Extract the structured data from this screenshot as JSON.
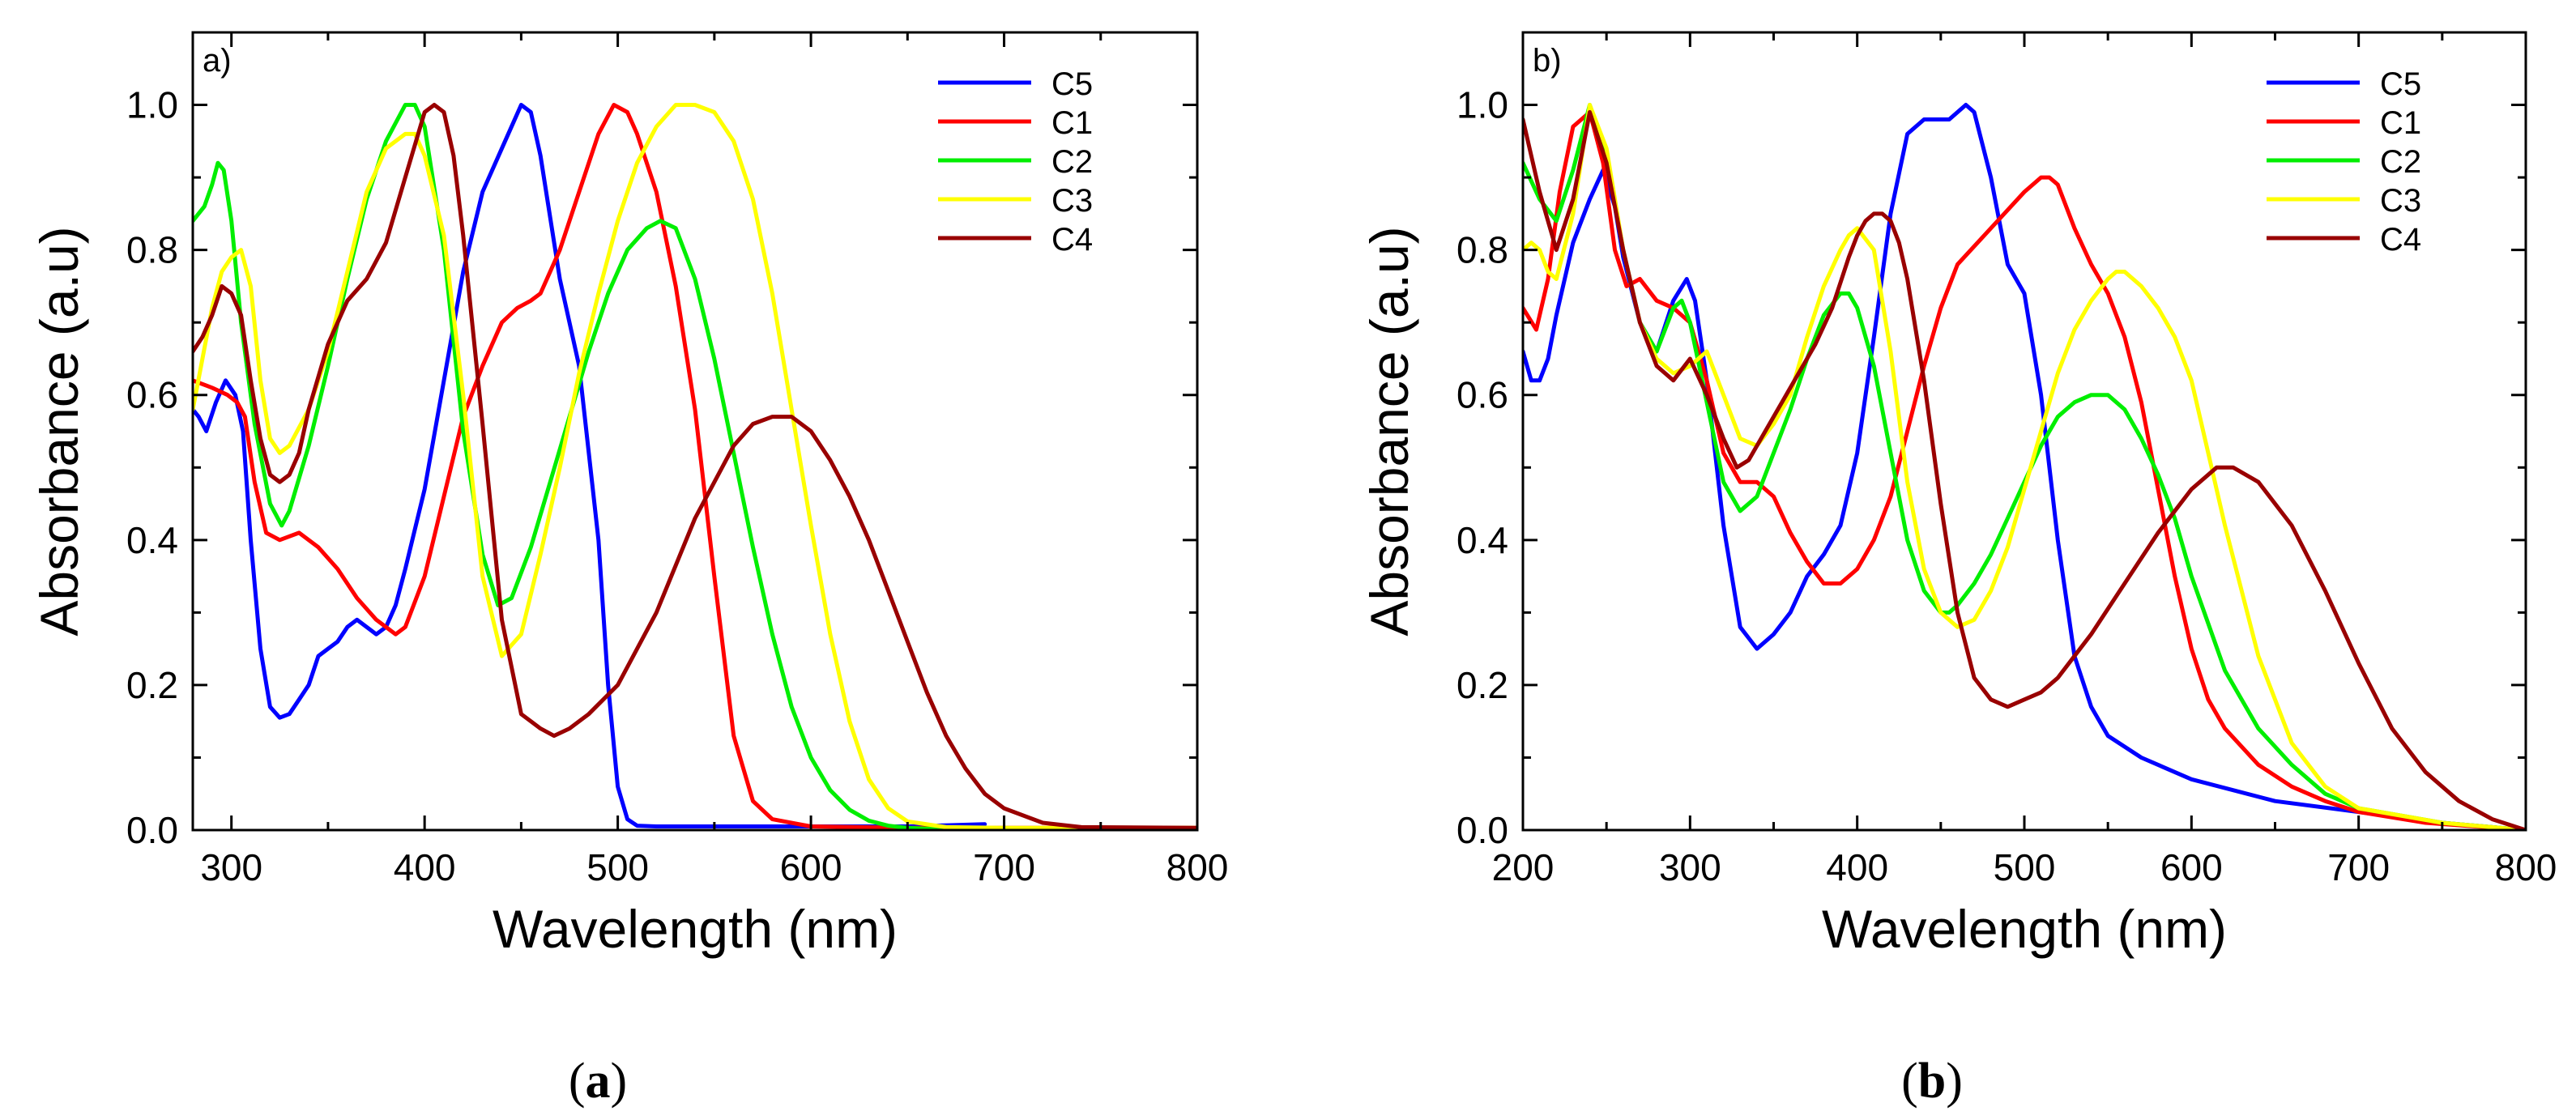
{
  "chart_data": [
    {
      "type": "line",
      "panel_label": "a)",
      "caption": {
        "open": "(",
        "letter": "a",
        "close": ")"
      },
      "xlabel": "Wavelength (nm)",
      "ylabel": "Absorbance (a.u)",
      "xlim": [
        280,
        800
      ],
      "ylim": [
        0,
        1.1
      ],
      "xticks": [
        300,
        400,
        500,
        600,
        700,
        800
      ],
      "yticks": [
        0.0,
        0.2,
        0.4,
        0.6,
        0.8,
        1.0
      ],
      "xtick_labels": [
        "300",
        "400",
        "500",
        "600",
        "700",
        "800"
      ],
      "ytick_labels": [
        "0.0",
        "0.2",
        "0.4",
        "0.6",
        "0.8",
        "1.0"
      ],
      "legend_position": "top-right",
      "series": [
        {
          "name": "C5",
          "color": "#0000ff",
          "x": [
            280,
            283,
            287,
            292,
            297,
            302,
            306,
            310,
            315,
            320,
            325,
            330,
            335,
            340,
            345,
            350,
            355,
            360,
            365,
            370,
            375,
            380,
            385,
            390,
            400,
            410,
            420,
            430,
            440,
            450,
            455,
            460,
            470,
            480,
            490,
            495,
            500,
            505,
            510,
            520,
            550,
            600,
            650,
            690
          ],
          "y": [
            0.58,
            0.57,
            0.55,
            0.59,
            0.62,
            0.6,
            0.55,
            0.4,
            0.25,
            0.17,
            0.155,
            0.16,
            0.18,
            0.2,
            0.24,
            0.25,
            0.26,
            0.28,
            0.29,
            0.28,
            0.27,
            0.28,
            0.31,
            0.36,
            0.47,
            0.62,
            0.77,
            0.88,
            0.94,
            1.0,
            0.99,
            0.93,
            0.76,
            0.64,
            0.4,
            0.2,
            0.06,
            0.015,
            0.006,
            0.005,
            0.005,
            0.005,
            0.005,
            0.008
          ]
        },
        {
          "name": "C1",
          "color": "#ff0000",
          "x": [
            280,
            290,
            298,
            303,
            307,
            312,
            318,
            325,
            335,
            345,
            355,
            365,
            375,
            385,
            390,
            400,
            410,
            420,
            430,
            440,
            448,
            455,
            460,
            470,
            480,
            490,
            498,
            505,
            510,
            520,
            530,
            540,
            550,
            560,
            570,
            580,
            600,
            650,
            700,
            800
          ],
          "y": [
            0.62,
            0.61,
            0.6,
            0.59,
            0.57,
            0.48,
            0.41,
            0.4,
            0.41,
            0.39,
            0.36,
            0.32,
            0.29,
            0.27,
            0.28,
            0.35,
            0.46,
            0.57,
            0.64,
            0.7,
            0.72,
            0.73,
            0.74,
            0.8,
            0.88,
            0.96,
            1.0,
            0.99,
            0.96,
            0.88,
            0.75,
            0.58,
            0.35,
            0.13,
            0.04,
            0.015,
            0.005,
            0.003,
            0.003,
            0.003
          ]
        },
        {
          "name": "C2",
          "color": "#00ee00",
          "x": [
            280,
            286,
            290,
            293,
            296,
            300,
            305,
            312,
            320,
            326,
            330,
            340,
            350,
            360,
            370,
            380,
            390,
            395,
            400,
            410,
            420,
            430,
            438,
            445,
            455,
            465,
            475,
            485,
            495,
            505,
            515,
            522,
            530,
            540,
            550,
            560,
            570,
            580,
            590,
            600,
            610,
            620,
            630,
            640,
            650,
            660,
            680,
            700,
            800
          ],
          "y": [
            0.84,
            0.86,
            0.89,
            0.92,
            0.91,
            0.84,
            0.7,
            0.56,
            0.45,
            0.42,
            0.44,
            0.53,
            0.64,
            0.76,
            0.87,
            0.95,
            1.0,
            1.0,
            0.97,
            0.8,
            0.55,
            0.38,
            0.31,
            0.32,
            0.39,
            0.48,
            0.57,
            0.66,
            0.74,
            0.8,
            0.83,
            0.84,
            0.83,
            0.76,
            0.65,
            0.52,
            0.39,
            0.27,
            0.17,
            0.1,
            0.055,
            0.028,
            0.013,
            0.006,
            0.003,
            0.002,
            0.002,
            0.002,
            0.002
          ]
        },
        {
          "name": "C3",
          "color": "#ffff00",
          "x": [
            280,
            285,
            290,
            295,
            300,
            305,
            310,
            315,
            320,
            325,
            330,
            340,
            350,
            360,
            370,
            380,
            390,
            395,
            400,
            410,
            420,
            430,
            440,
            450,
            460,
            470,
            480,
            490,
            500,
            510,
            520,
            530,
            540,
            550,
            560,
            570,
            580,
            590,
            600,
            610,
            620,
            630,
            640,
            650,
            670,
            700,
            800
          ],
          "y": [
            0.58,
            0.65,
            0.72,
            0.77,
            0.79,
            0.8,
            0.75,
            0.62,
            0.54,
            0.52,
            0.53,
            0.58,
            0.66,
            0.77,
            0.88,
            0.94,
            0.96,
            0.96,
            0.93,
            0.82,
            0.6,
            0.35,
            0.24,
            0.27,
            0.38,
            0.5,
            0.63,
            0.74,
            0.84,
            0.92,
            0.97,
            1.0,
            1.0,
            0.99,
            0.95,
            0.87,
            0.74,
            0.58,
            0.42,
            0.27,
            0.15,
            0.07,
            0.03,
            0.012,
            0.004,
            0.003,
            0.003
          ]
        },
        {
          "name": "C4",
          "color": "#990000",
          "x": [
            280,
            285,
            290,
            295,
            300,
            305,
            310,
            315,
            320,
            325,
            330,
            335,
            340,
            350,
            360,
            370,
            380,
            390,
            400,
            405,
            410,
            415,
            420,
            430,
            440,
            450,
            460,
            467,
            475,
            485,
            500,
            520,
            540,
            560,
            570,
            580,
            590,
            600,
            610,
            620,
            630,
            640,
            650,
            660,
            670,
            680,
            690,
            700,
            720,
            740,
            800
          ],
          "y": [
            0.66,
            0.68,
            0.71,
            0.75,
            0.74,
            0.71,
            0.62,
            0.54,
            0.49,
            0.48,
            0.49,
            0.52,
            0.58,
            0.67,
            0.73,
            0.76,
            0.81,
            0.9,
            0.99,
            1.0,
            0.99,
            0.93,
            0.82,
            0.56,
            0.29,
            0.16,
            0.14,
            0.13,
            0.14,
            0.16,
            0.2,
            0.3,
            0.43,
            0.53,
            0.56,
            0.57,
            0.57,
            0.55,
            0.51,
            0.46,
            0.4,
            0.33,
            0.26,
            0.19,
            0.13,
            0.085,
            0.05,
            0.03,
            0.01,
            0.004,
            0.003
          ]
        }
      ]
    },
    {
      "type": "line",
      "panel_label": "b)",
      "caption": {
        "open": "(",
        "letter": "b",
        "close": ")"
      },
      "xlabel": "Wavelength (nm)",
      "ylabel": "Absorbance (a.u)",
      "xlim": [
        200,
        800
      ],
      "ylim": [
        0,
        1.1
      ],
      "xticks": [
        200,
        300,
        400,
        500,
        600,
        700,
        800
      ],
      "yticks": [
        0.0,
        0.2,
        0.4,
        0.6,
        0.8,
        1.0
      ],
      "xtick_labels": [
        "200",
        "300",
        "400",
        "500",
        "600",
        "700",
        "800"
      ],
      "ytick_labels": [
        "0.0",
        "0.2",
        "0.4",
        "0.6",
        "0.8",
        "1.0"
      ],
      "legend_position": "top-right",
      "series": [
        {
          "name": "C5",
          "color": "#0000ff",
          "x": [
            200,
            205,
            210,
            215,
            220,
            230,
            240,
            248,
            255,
            260,
            270,
            280,
            290,
            298,
            303,
            310,
            320,
            330,
            340,
            350,
            360,
            370,
            380,
            390,
            400,
            410,
            420,
            430,
            440,
            445,
            455,
            465,
            470,
            480,
            490,
            500,
            510,
            520,
            530,
            540,
            550,
            570,
            600,
            650,
            700,
            750,
            800
          ],
          "y": [
            0.66,
            0.62,
            0.62,
            0.65,
            0.71,
            0.81,
            0.87,
            0.91,
            0.86,
            0.79,
            0.7,
            0.66,
            0.73,
            0.76,
            0.73,
            0.62,
            0.42,
            0.28,
            0.25,
            0.27,
            0.3,
            0.35,
            0.38,
            0.42,
            0.52,
            0.68,
            0.85,
            0.96,
            0.98,
            0.98,
            0.98,
            1.0,
            0.99,
            0.9,
            0.78,
            0.74,
            0.6,
            0.4,
            0.24,
            0.17,
            0.13,
            0.1,
            0.07,
            0.04,
            0.025,
            0.01,
            0.0
          ]
        },
        {
          "name": "C1",
          "color": "#ff0000",
          "x": [
            200,
            208,
            215,
            222,
            230,
            240,
            248,
            255,
            262,
            270,
            280,
            290,
            300,
            310,
            320,
            330,
            340,
            350,
            360,
            370,
            380,
            390,
            400,
            410,
            420,
            430,
            440,
            450,
            460,
            480,
            500,
            510,
            515,
            520,
            530,
            540,
            550,
            560,
            570,
            580,
            590,
            600,
            610,
            620,
            640,
            660,
            680,
            700,
            740,
            800
          ],
          "y": [
            0.72,
            0.69,
            0.76,
            0.88,
            0.97,
            0.99,
            0.92,
            0.8,
            0.75,
            0.76,
            0.73,
            0.72,
            0.7,
            0.62,
            0.52,
            0.48,
            0.48,
            0.46,
            0.41,
            0.37,
            0.34,
            0.34,
            0.36,
            0.4,
            0.46,
            0.55,
            0.64,
            0.72,
            0.78,
            0.83,
            0.88,
            0.9,
            0.9,
            0.89,
            0.83,
            0.78,
            0.74,
            0.68,
            0.59,
            0.47,
            0.35,
            0.25,
            0.18,
            0.14,
            0.09,
            0.06,
            0.04,
            0.025,
            0.01,
            0.0
          ]
        },
        {
          "name": "C2",
          "color": "#00ee00",
          "x": [
            200,
            210,
            220,
            230,
            240,
            250,
            260,
            270,
            280,
            290,
            295,
            300,
            310,
            320,
            330,
            340,
            350,
            360,
            370,
            380,
            390,
            395,
            400,
            410,
            420,
            430,
            440,
            450,
            455,
            460,
            470,
            480,
            490,
            500,
            510,
            520,
            530,
            540,
            550,
            560,
            570,
            580,
            590,
            600,
            620,
            640,
            660,
            680,
            700,
            750,
            800
          ],
          "y": [
            0.92,
            0.87,
            0.84,
            0.91,
            1.0,
            0.93,
            0.8,
            0.7,
            0.66,
            0.72,
            0.73,
            0.7,
            0.59,
            0.48,
            0.44,
            0.46,
            0.52,
            0.58,
            0.65,
            0.71,
            0.74,
            0.74,
            0.72,
            0.64,
            0.52,
            0.4,
            0.33,
            0.3,
            0.3,
            0.31,
            0.34,
            0.38,
            0.43,
            0.48,
            0.53,
            0.57,
            0.59,
            0.6,
            0.6,
            0.58,
            0.54,
            0.49,
            0.43,
            0.35,
            0.22,
            0.14,
            0.09,
            0.05,
            0.03,
            0.01,
            0.0
          ]
        },
        {
          "name": "C3",
          "color": "#ffff00",
          "x": [
            200,
            205,
            210,
            215,
            220,
            230,
            240,
            250,
            260,
            270,
            280,
            290,
            300,
            310,
            320,
            330,
            340,
            350,
            360,
            370,
            380,
            390,
            395,
            400,
            410,
            420,
            430,
            440,
            450,
            460,
            470,
            480,
            490,
            500,
            510,
            520,
            530,
            540,
            550,
            555,
            560,
            570,
            580,
            590,
            600,
            610,
            620,
            640,
            660,
            680,
            700,
            750,
            800
          ],
          "y": [
            0.8,
            0.81,
            0.8,
            0.77,
            0.76,
            0.85,
            1.0,
            0.94,
            0.8,
            0.7,
            0.65,
            0.63,
            0.64,
            0.66,
            0.6,
            0.54,
            0.53,
            0.56,
            0.6,
            0.68,
            0.75,
            0.8,
            0.82,
            0.83,
            0.8,
            0.66,
            0.48,
            0.36,
            0.3,
            0.28,
            0.29,
            0.33,
            0.39,
            0.47,
            0.55,
            0.63,
            0.69,
            0.73,
            0.76,
            0.77,
            0.77,
            0.75,
            0.72,
            0.68,
            0.62,
            0.52,
            0.42,
            0.24,
            0.12,
            0.06,
            0.03,
            0.01,
            0.0
          ]
        },
        {
          "name": "C4",
          "color": "#990000",
          "x": [
            200,
            210,
            220,
            230,
            240,
            250,
            260,
            270,
            280,
            290,
            300,
            310,
            320,
            328,
            335,
            345,
            355,
            365,
            375,
            385,
            395,
            400,
            405,
            410,
            415,
            420,
            425,
            430,
            440,
            450,
            460,
            470,
            480,
            490,
            500,
            510,
            520,
            540,
            560,
            580,
            600,
            615,
            625,
            640,
            660,
            680,
            700,
            720,
            740,
            760,
            780,
            800
          ],
          "y": [
            0.98,
            0.88,
            0.8,
            0.87,
            0.99,
            0.92,
            0.8,
            0.7,
            0.64,
            0.62,
            0.65,
            0.6,
            0.54,
            0.5,
            0.51,
            0.55,
            0.59,
            0.63,
            0.67,
            0.72,
            0.79,
            0.82,
            0.84,
            0.85,
            0.85,
            0.84,
            0.81,
            0.76,
            0.62,
            0.45,
            0.3,
            0.21,
            0.18,
            0.17,
            0.18,
            0.19,
            0.21,
            0.27,
            0.34,
            0.41,
            0.47,
            0.5,
            0.5,
            0.48,
            0.42,
            0.33,
            0.23,
            0.14,
            0.08,
            0.04,
            0.015,
            0.0
          ]
        }
      ]
    }
  ]
}
